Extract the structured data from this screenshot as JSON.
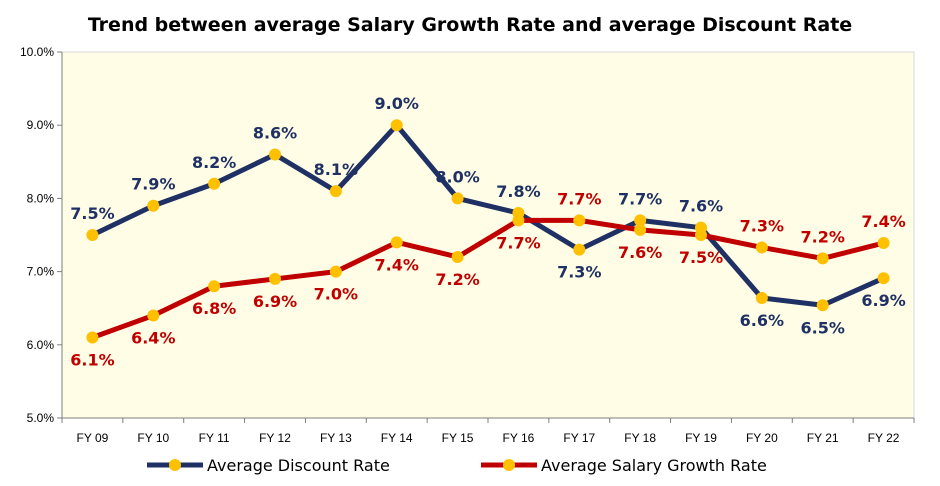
{
  "chart_data": {
    "type": "line",
    "title": "Trend between average Salary Growth Rate and average Discount Rate",
    "xlabel": "",
    "ylabel": "",
    "ylim": [
      5.0,
      10.0
    ],
    "y_ticks": [
      "5.0%",
      "6.0%",
      "7.0%",
      "8.0%",
      "9.0%",
      "10.0%"
    ],
    "y_tick_values": [
      5.0,
      6.0,
      7.0,
      8.0,
      9.0,
      10.0
    ],
    "categories": [
      "FY 09",
      "FY 10",
      "FY 11",
      "FY 12",
      "FY 13",
      "FY 14",
      "FY 15",
      "FY 16",
      "FY 17",
      "FY 18",
      "FY 19",
      "FY 20",
      "FY 21",
      "FY 22"
    ],
    "grid": false,
    "legend_position": "bottom",
    "plot_background": "#FFFDE5",
    "marker_color": "#FFC000",
    "series": [
      {
        "name": "Average Discount Rate",
        "color": "#1F3164",
        "values": [
          7.5,
          7.9,
          8.2,
          8.6,
          8.1,
          9.0,
          8.0,
          7.8,
          7.3,
          7.7,
          7.6,
          6.64,
          6.54,
          6.91
        ],
        "labels": [
          "7.5%",
          "7.9%",
          "8.2%",
          "8.6%",
          "8.1%",
          "9.0%",
          "8.0%",
          "7.8%",
          "7.3%",
          "7.7%",
          "7.6%",
          "6.6%",
          "6.5%",
          "6.9%"
        ],
        "label_pos": [
          "above",
          "above",
          "above",
          "above",
          "above",
          "above",
          "above",
          "above",
          "below",
          "above",
          "above",
          "below",
          "below",
          "below"
        ]
      },
      {
        "name": "Average Salary Growth Rate",
        "color": "#C00000",
        "values": [
          6.1,
          6.4,
          6.8,
          6.9,
          7.0,
          7.4,
          7.2,
          7.7,
          7.7,
          7.57,
          7.5,
          7.33,
          7.18,
          7.39
        ],
        "labels": [
          "6.1%",
          "6.4%",
          "6.8%",
          "6.9%",
          "7.0%",
          "7.4%",
          "7.2%",
          "7.7%",
          "7.7%",
          "7.6%",
          "7.5%",
          "7.3%",
          "7.2%",
          "7.4%"
        ],
        "label_pos": [
          "below",
          "below",
          "below",
          "below",
          "below",
          "below",
          "below",
          "below",
          "above",
          "below",
          "below",
          "above",
          "above",
          "above"
        ]
      }
    ]
  }
}
